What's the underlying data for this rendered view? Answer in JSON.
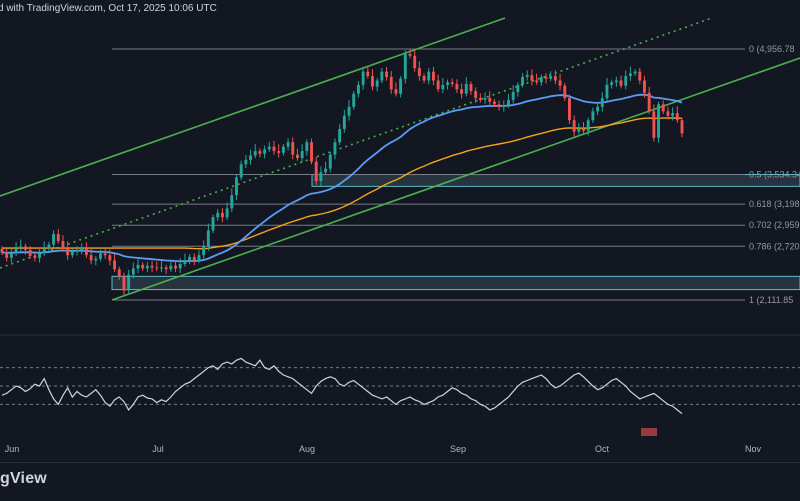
{
  "header": {
    "text": "d with TradingView.com, Oct 17, 2025 10:06 UTC"
  },
  "brand": {
    "text": "gView"
  },
  "colors": {
    "background": "#131722",
    "up": "#26a69a",
    "down": "#ef5350",
    "channel": "#4caf50",
    "ema_fast": "#5b9cf6",
    "ema_slow": "#f7a21b",
    "fib": "#787b86",
    "zone_fill": "#2f3f4a",
    "zone_border": "#5fb9c7",
    "rsi": "#d1d4dc"
  },
  "chart_data": {
    "type": "candlestick",
    "x_axis_labels": [
      "Jun",
      "Jul",
      "Aug",
      "Sep",
      "Oct",
      "Nov"
    ],
    "fib_levels": [
      {
        "label": "0 (4,956.78",
        "value": 4956.78
      },
      {
        "label": "0.5 (3,534.34",
        "value": 3534.34
      },
      {
        "label": "0.618 (3,198.64",
        "value": 3198.64
      },
      {
        "label": "0.702 (2,959.67",
        "value": 2959.67
      },
      {
        "label": "0.786 (2,720.70",
        "value": 2720.7
      },
      {
        "label": "1 (2,111.85",
        "value": 2111.85
      }
    ],
    "support_zones": [
      {
        "low": 3400,
        "high": 3534
      },
      {
        "low": 2230,
        "high": 2380
      }
    ],
    "candles_close": [
      2650,
      2590,
      2640,
      2700,
      2720,
      2680,
      2610,
      2590,
      2640,
      2700,
      2740,
      2860,
      2780,
      2700,
      2620,
      2660,
      2680,
      2700,
      2620,
      2560,
      2580,
      2640,
      2620,
      2560,
      2460,
      2380,
      2220,
      2400,
      2470,
      2510,
      2470,
      2500,
      2480,
      2470,
      2480,
      2460,
      2500,
      2470,
      2520,
      2560,
      2600,
      2560,
      2620,
      2720,
      2900,
      3050,
      3100,
      3050,
      3150,
      3300,
      3500,
      3650,
      3700,
      3750,
      3800,
      3770,
      3820,
      3850,
      3800,
      3780,
      3850,
      3900,
      3760,
      3720,
      3800,
      3900,
      3680,
      3460,
      3560,
      3600,
      3760,
      3900,
      4050,
      4200,
      4300,
      4450,
      4550,
      4700,
      4650,
      4530,
      4600,
      4700,
      4640,
      4500,
      4450,
      4620,
      4900,
      4880,
      4740,
      4650,
      4600,
      4700,
      4600,
      4500,
      4550,
      4580,
      4560,
      4500,
      4450,
      4560,
      4480,
      4400,
      4380,
      4400,
      4360,
      4330,
      4300,
      4320,
      4380,
      4470,
      4550,
      4640,
      4660,
      4600,
      4580,
      4640,
      4620,
      4650,
      4600,
      4540,
      4400,
      4150,
      4020,
      4050,
      4030,
      4150,
      4250,
      4300,
      4400,
      4550,
      4580,
      4600,
      4540,
      4650,
      4680,
      4700,
      4600,
      4460,
      4250,
      3950,
      4330,
      4250,
      4200,
      4230,
      4150,
      4000
    ],
    "rsi_values": [
      40,
      42,
      46,
      50,
      48,
      44,
      47,
      52,
      50,
      58,
      46,
      36,
      30,
      40,
      48,
      38,
      44,
      40,
      38,
      42,
      46,
      40,
      32,
      28,
      35,
      38,
      33,
      24,
      30,
      38,
      40,
      37,
      36,
      32,
      35,
      33,
      38,
      44,
      48,
      52,
      54,
      58,
      62,
      66,
      70,
      72,
      68,
      74,
      76,
      74,
      78,
      80,
      76,
      74,
      72,
      78,
      70,
      68,
      72,
      66,
      62,
      60,
      58,
      54,
      50,
      46,
      42,
      50,
      55,
      58,
      60,
      58,
      52,
      50,
      54,
      56,
      52,
      48,
      44,
      40,
      38,
      36,
      38,
      34,
      30,
      34,
      36,
      38,
      35,
      33,
      30,
      32,
      34,
      38,
      40,
      44,
      48,
      46,
      42,
      40,
      36,
      34,
      30,
      28,
      24,
      26,
      30,
      34,
      38,
      44,
      50,
      54,
      56,
      58,
      60,
      62,
      58,
      52,
      48,
      50,
      54,
      58,
      62,
      64,
      60,
      55,
      50,
      46,
      48,
      52,
      56,
      58,
      54,
      50,
      44,
      40,
      36,
      38,
      40,
      42,
      38,
      34,
      30,
      28,
      24,
      20
    ],
    "rsi_guides": [
      70,
      50,
      30
    ]
  }
}
